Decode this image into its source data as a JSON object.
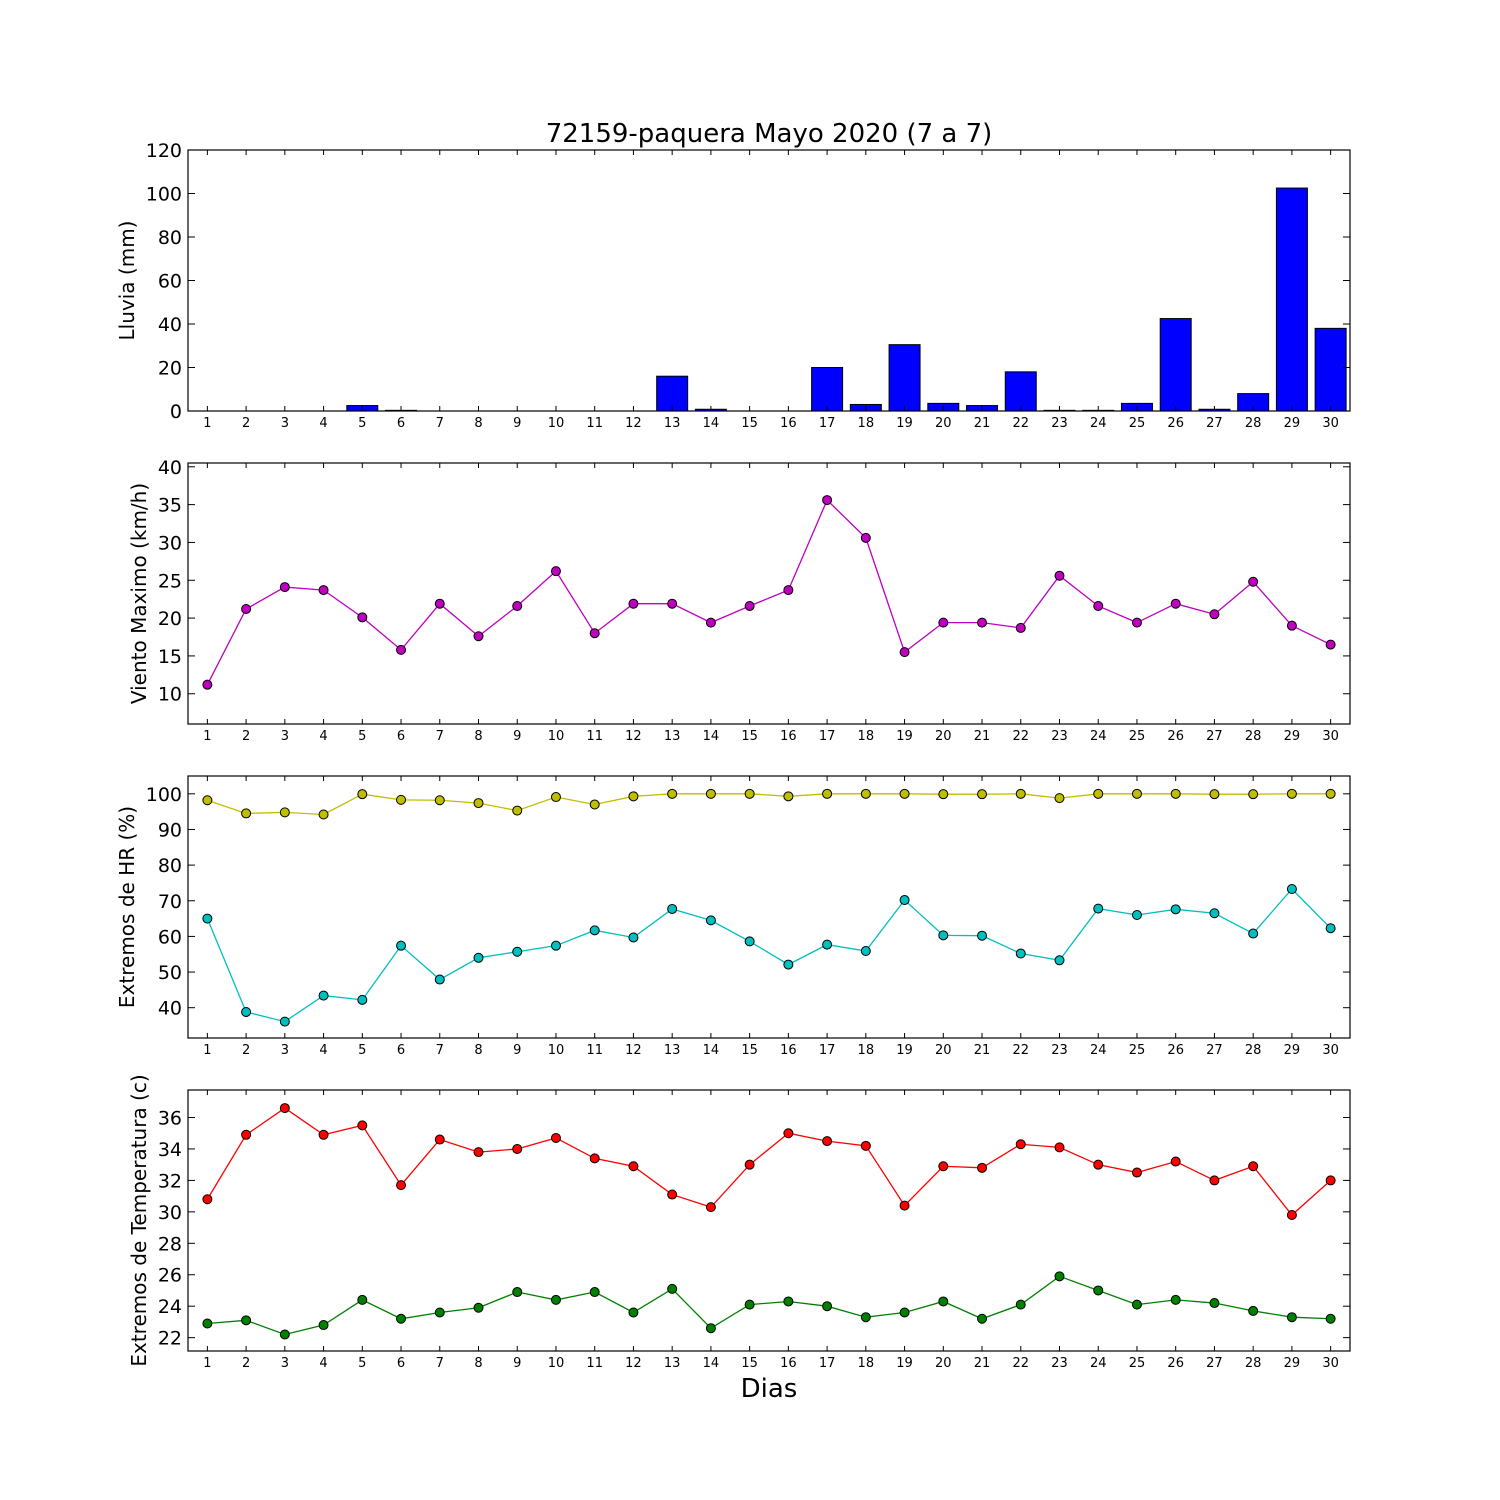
{
  "figure": {
    "title": "72159-paquera Mayo 2020  (7 a 7)",
    "xlabel": "Dias"
  },
  "chart_data": [
    {
      "type": "bar",
      "ylabel": "Lluvia (mm)",
      "ylim": [
        0,
        120
      ],
      "yticks": [
        0,
        20,
        40,
        60,
        80,
        100,
        120
      ],
      "categories": [
        1,
        2,
        3,
        4,
        5,
        6,
        7,
        8,
        9,
        10,
        11,
        12,
        13,
        14,
        15,
        16,
        17,
        18,
        19,
        20,
        21,
        22,
        23,
        24,
        25,
        26,
        27,
        28,
        29,
        30
      ],
      "series": [
        {
          "color": "#0000ff",
          "values": [
            0,
            0,
            0,
            0,
            2.5,
            0.3,
            0,
            0,
            0,
            0,
            0,
            0,
            16,
            0.8,
            0,
            0,
            20,
            3,
            30.5,
            3.5,
            2.5,
            18,
            0.3,
            0.3,
            3.5,
            42.5,
            0.8,
            8,
            102.5,
            38
          ]
        }
      ],
      "grid": false
    },
    {
      "type": "line",
      "ylabel": "Viento Maximo (km/h)",
      "ylim": [
        6,
        40.5
      ],
      "yticks": [
        10,
        15,
        20,
        25,
        30,
        35,
        40
      ],
      "x": [
        1,
        2,
        3,
        4,
        5,
        6,
        7,
        8,
        9,
        10,
        11,
        12,
        13,
        14,
        15,
        16,
        17,
        18,
        19,
        20,
        21,
        22,
        23,
        24,
        25,
        26,
        27,
        28,
        29,
        30
      ],
      "series": [
        {
          "color": "#bf00bf",
          "values": [
            11.2,
            21.2,
            24.1,
            23.7,
            20.1,
            15.8,
            21.9,
            17.6,
            21.6,
            26.2,
            18,
            21.9,
            21.9,
            19.4,
            21.6,
            23.7,
            35.6,
            30.6,
            15.5,
            19.4,
            19.4,
            18.7,
            25.6,
            21.6,
            19.4,
            21.9,
            20.5,
            24.8,
            19,
            16.5
          ]
        }
      ],
      "grid": false
    },
    {
      "type": "line",
      "ylabel": "Extremos de HR (%)",
      "ylim": [
        31.5,
        105
      ],
      "yticks": [
        40,
        50,
        60,
        70,
        80,
        90,
        100
      ],
      "x": [
        1,
        2,
        3,
        4,
        5,
        6,
        7,
        8,
        9,
        10,
        11,
        12,
        13,
        14,
        15,
        16,
        17,
        18,
        19,
        20,
        21,
        22,
        23,
        24,
        25,
        26,
        27,
        28,
        29,
        30
      ],
      "series": [
        {
          "color": "#bfbf00",
          "values": [
            98.2,
            94.5,
            94.8,
            94.2,
            99.9,
            98.3,
            98.2,
            97.4,
            95.3,
            99.1,
            97,
            99.3,
            100,
            100,
            100,
            99.3,
            100,
            100,
            100,
            99.9,
            99.9,
            100,
            98.8,
            100,
            100,
            100,
            99.9,
            99.9,
            100,
            100
          ]
        },
        {
          "color": "#00bfbf",
          "values": [
            65,
            38.8,
            36.1,
            43.4,
            42.2,
            57.4,
            47.9,
            54,
            55.7,
            57.4,
            61.7,
            59.7,
            67.7,
            64.5,
            58.6,
            52.1,
            57.7,
            55.9,
            70.2,
            60.3,
            60.2,
            55.2,
            53.3,
            67.8,
            66,
            67.6,
            66.5,
            60.8,
            73.3,
            62.3
          ]
        }
      ],
      "grid": false
    },
    {
      "type": "line",
      "ylabel": "Extremos de Temperatura (c)",
      "ylim": [
        21.15,
        37.75
      ],
      "yticks": [
        22,
        24,
        26,
        28,
        30,
        32,
        34,
        36
      ],
      "x": [
        1,
        2,
        3,
        4,
        5,
        6,
        7,
        8,
        9,
        10,
        11,
        12,
        13,
        14,
        15,
        16,
        17,
        18,
        19,
        20,
        21,
        22,
        23,
        24,
        25,
        26,
        27,
        28,
        29,
        30
      ],
      "series": [
        {
          "color": "#ff0000",
          "values": [
            30.8,
            34.9,
            36.6,
            34.9,
            35.5,
            31.7,
            34.6,
            33.8,
            34,
            34.7,
            33.4,
            32.9,
            31.1,
            30.3,
            33,
            35,
            34.5,
            34.2,
            30.4,
            32.9,
            32.8,
            34.3,
            34.1,
            33,
            32.5,
            33.2,
            32,
            32.9,
            29.8,
            32
          ]
        },
        {
          "color": "#008000",
          "values": [
            22.9,
            23.1,
            22.2,
            22.8,
            24.4,
            23.2,
            23.6,
            23.9,
            24.9,
            24.4,
            24.9,
            23.6,
            25.1,
            22.6,
            24.1,
            24.3,
            24,
            23.3,
            23.6,
            24.3,
            23.2,
            24.1,
            25.9,
            25,
            24.1,
            24.4,
            24.2,
            23.7,
            23.3,
            23.2
          ]
        }
      ],
      "grid": false
    }
  ]
}
